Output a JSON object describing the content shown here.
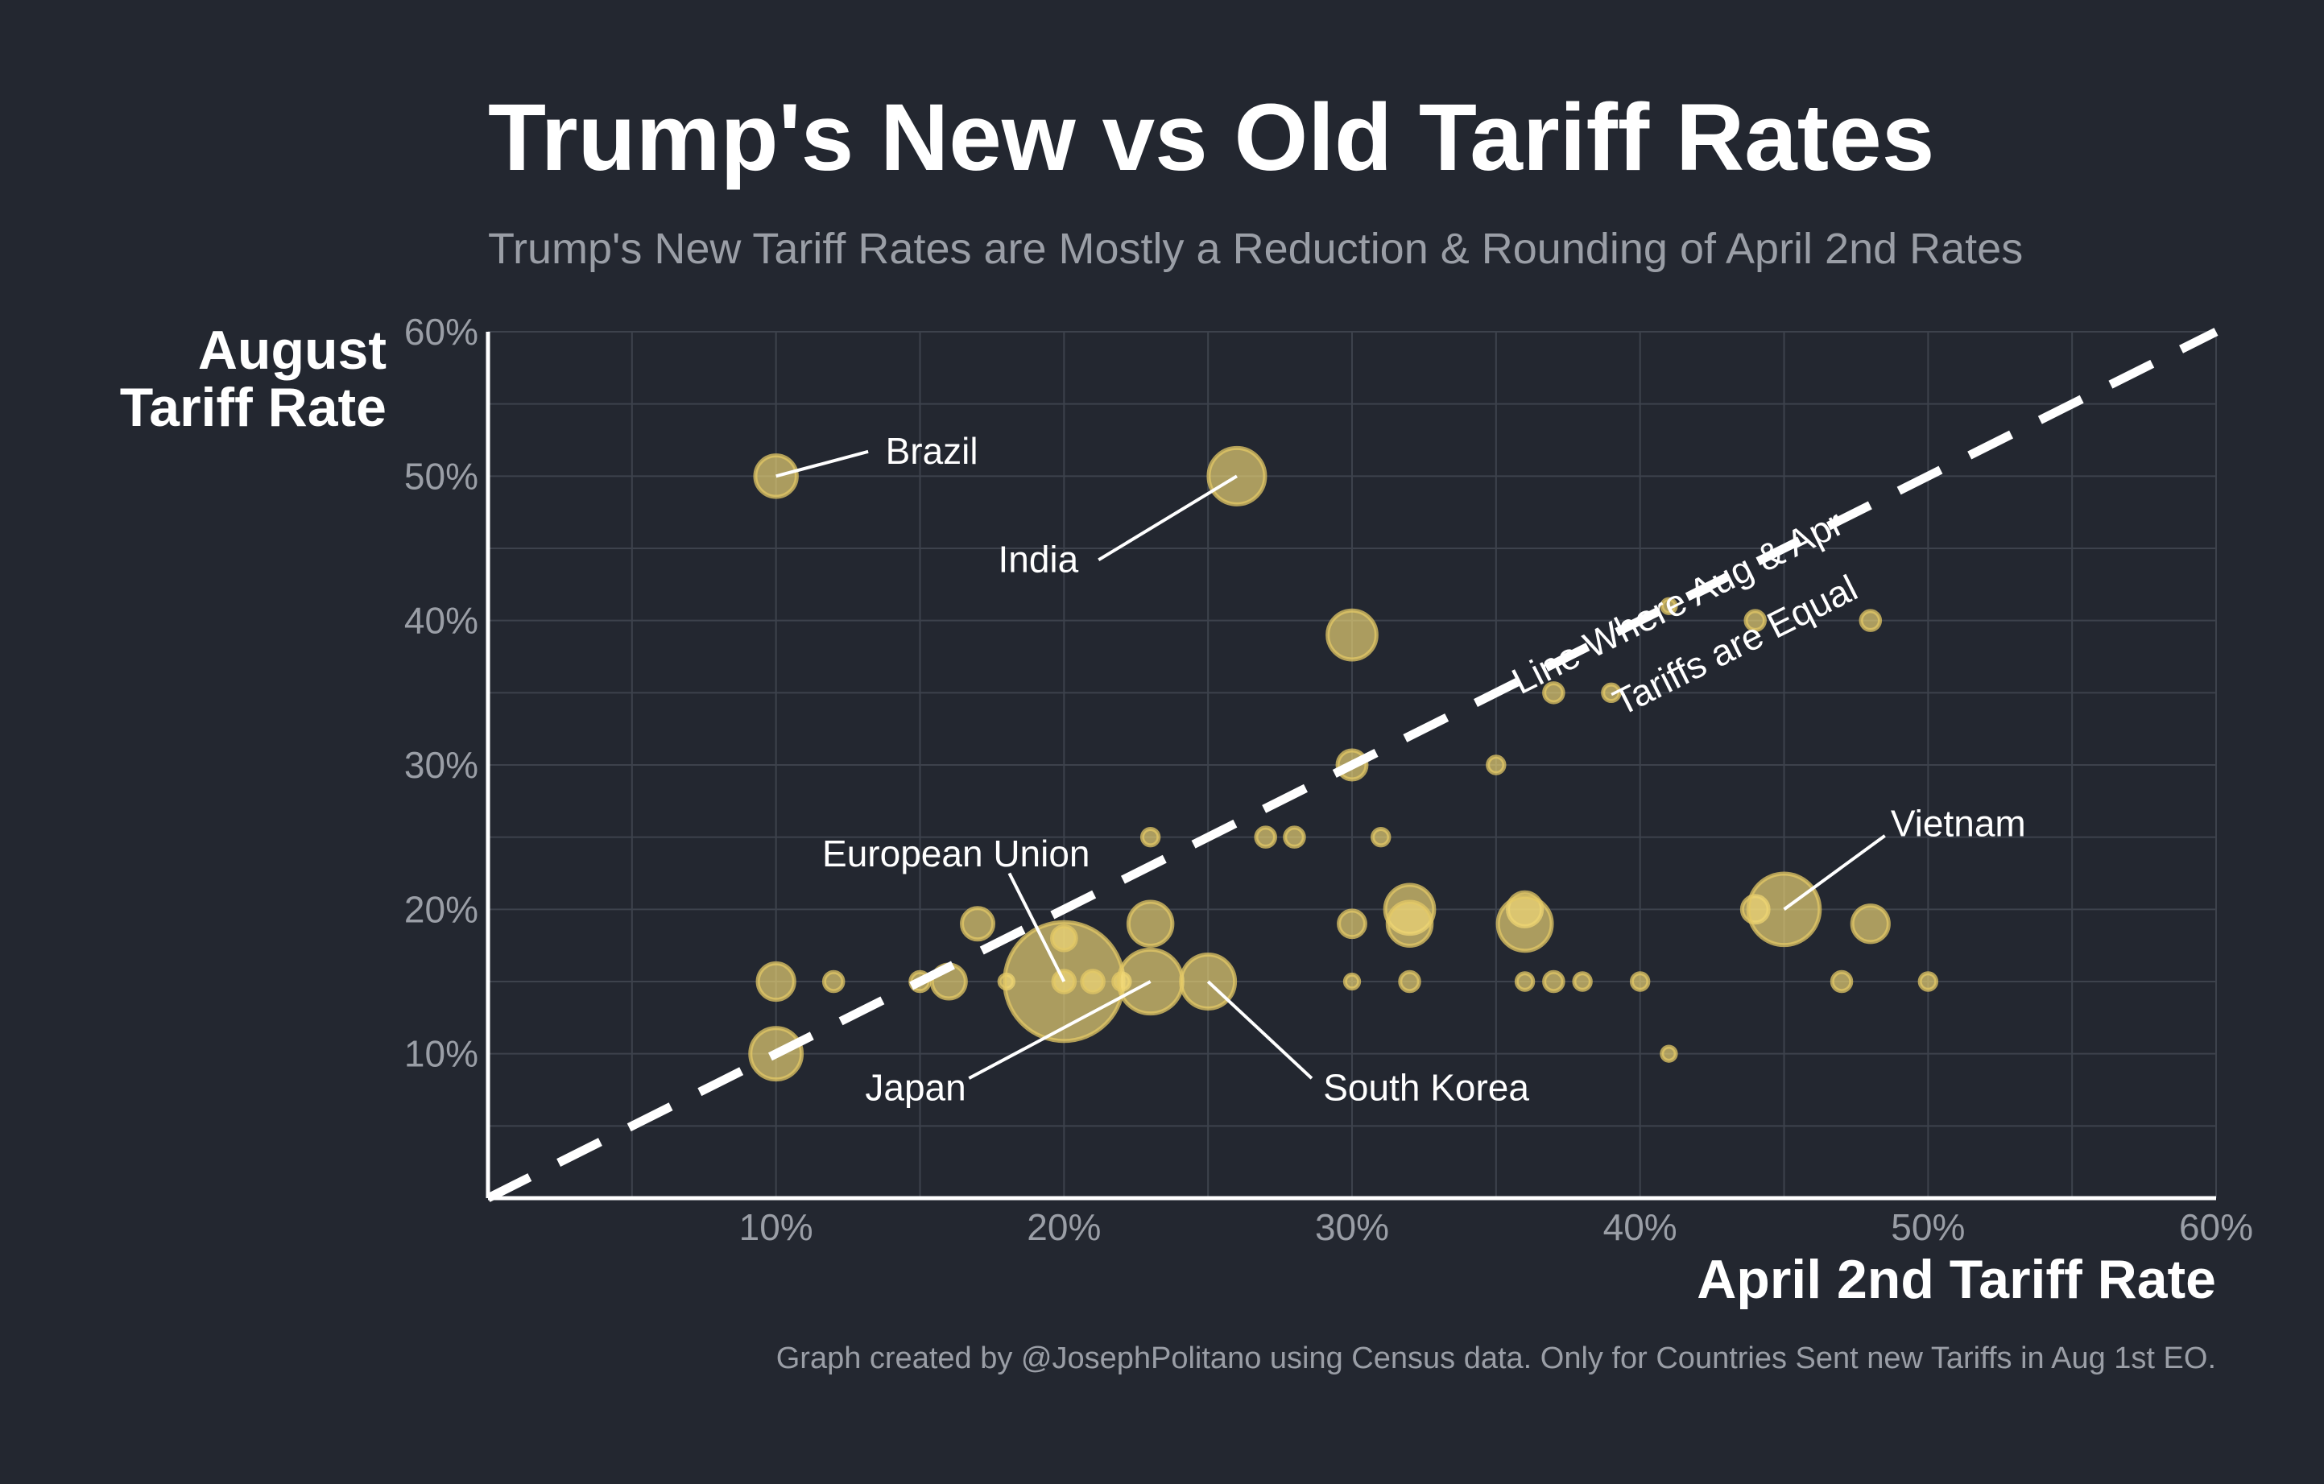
{
  "chart_data": {
    "type": "scatter",
    "title": "Trump's New vs Old Tariff Rates",
    "subtitle": "Trump's New Tariff Rates are Mostly a Reduction & Rounding of April 2nd Rates",
    "xlabel": "April 2nd Tariff Rate",
    "ylabel_lines": [
      "August",
      "Tariff Rate"
    ],
    "caption": "Graph created by @JosephPolitano using Census data. Only for Countries Sent new Tariffs in Aug 1st EO.",
    "xlim": [
      0,
      60
    ],
    "ylim": [
      0,
      60
    ],
    "x_ticks": [
      10,
      20,
      30,
      40,
      50,
      60
    ],
    "x_tick_labels": [
      "10%",
      "20%",
      "30%",
      "40%",
      "50%",
      "60%"
    ],
    "y_ticks": [
      10,
      20,
      30,
      40,
      50,
      60
    ],
    "y_tick_labels": [
      "10%",
      "20%",
      "30%",
      "40%",
      "50%",
      "60%"
    ],
    "grid": true,
    "colors": {
      "background": "#232730",
      "grid": "#3d424c",
      "axis": "#ffffff",
      "marker_fill": "#f5dc7a",
      "marker_stroke": "#e3c866",
      "line": "#ffffff"
    },
    "equal_line": {
      "from": [
        0,
        0
      ],
      "to": [
        60,
        60
      ],
      "label_lines": [
        "Line Where Aug & Apr",
        "Tariffs are Equal"
      ]
    },
    "points": [
      {
        "x": 10,
        "y": 50,
        "size": 14
      },
      {
        "x": 26,
        "y": 50,
        "size": 20
      },
      {
        "x": 30,
        "y": 39,
        "size": 17
      },
      {
        "x": 10,
        "y": 15,
        "size": 12
      },
      {
        "x": 10,
        "y": 10,
        "size": 18
      },
      {
        "x": 12,
        "y": 15,
        "size": 5
      },
      {
        "x": 15,
        "y": 15,
        "size": 5
      },
      {
        "x": 16,
        "y": 15,
        "size": 11
      },
      {
        "x": 17,
        "y": 19,
        "size": 10
      },
      {
        "x": 18,
        "y": 15,
        "size": 3
      },
      {
        "x": 20,
        "y": 15,
        "size": 45
      },
      {
        "x": 20,
        "y": 18,
        "size": 7
      },
      {
        "x": 20,
        "y": 15,
        "size": 6
      },
      {
        "x": 21,
        "y": 15,
        "size": 6
      },
      {
        "x": 22,
        "y": 15,
        "size": 4
      },
      {
        "x": 23,
        "y": 25,
        "size": 4
      },
      {
        "x": 23,
        "y": 19,
        "size": 15
      },
      {
        "x": 23,
        "y": 15,
        "size": 23
      },
      {
        "x": 25,
        "y": 15,
        "size": 19
      },
      {
        "x": 27,
        "y": 25,
        "size": 5
      },
      {
        "x": 28,
        "y": 25,
        "size": 5
      },
      {
        "x": 30,
        "y": 30,
        "size": 9
      },
      {
        "x": 30,
        "y": 19,
        "size": 8
      },
      {
        "x": 30,
        "y": 15,
        "size": 3
      },
      {
        "x": 31,
        "y": 25,
        "size": 4
      },
      {
        "x": 32,
        "y": 20,
        "size": 17
      },
      {
        "x": 32,
        "y": 19,
        "size": 15
      },
      {
        "x": 32,
        "y": 15,
        "size": 5
      },
      {
        "x": 35,
        "y": 30,
        "size": 4
      },
      {
        "x": 36,
        "y": 20,
        "size": 11
      },
      {
        "x": 36,
        "y": 19,
        "size": 19
      },
      {
        "x": 36,
        "y": 15,
        "size": 4
      },
      {
        "x": 37,
        "y": 35,
        "size": 5
      },
      {
        "x": 37,
        "y": 15,
        "size": 5
      },
      {
        "x": 38,
        "y": 15,
        "size": 4
      },
      {
        "x": 39,
        "y": 35,
        "size": 4
      },
      {
        "x": 40,
        "y": 15,
        "size": 4
      },
      {
        "x": 41,
        "y": 41,
        "size": 3
      },
      {
        "x": 41,
        "y": 10,
        "size": 3
      },
      {
        "x": 44,
        "y": 40,
        "size": 5
      },
      {
        "x": 44,
        "y": 20,
        "size": 8
      },
      {
        "x": 45,
        "y": 20,
        "size": 26
      },
      {
        "x": 47,
        "y": 15,
        "size": 5
      },
      {
        "x": 48,
        "y": 40,
        "size": 5
      },
      {
        "x": 48,
        "y": 19,
        "size": 12
      },
      {
        "x": 50,
        "y": 15,
        "size": 4
      }
    ],
    "annotations": [
      {
        "text": "Brazil",
        "point": [
          10,
          50
        ]
      },
      {
        "text": "India",
        "point": [
          26,
          50
        ]
      },
      {
        "text": "European Union",
        "point": [
          20,
          15
        ]
      },
      {
        "text": "Japan",
        "point": [
          23,
          15
        ]
      },
      {
        "text": "South Korea",
        "point": [
          25,
          15
        ]
      },
      {
        "text": "Vietnam",
        "point": [
          45,
          20
        ]
      }
    ]
  }
}
